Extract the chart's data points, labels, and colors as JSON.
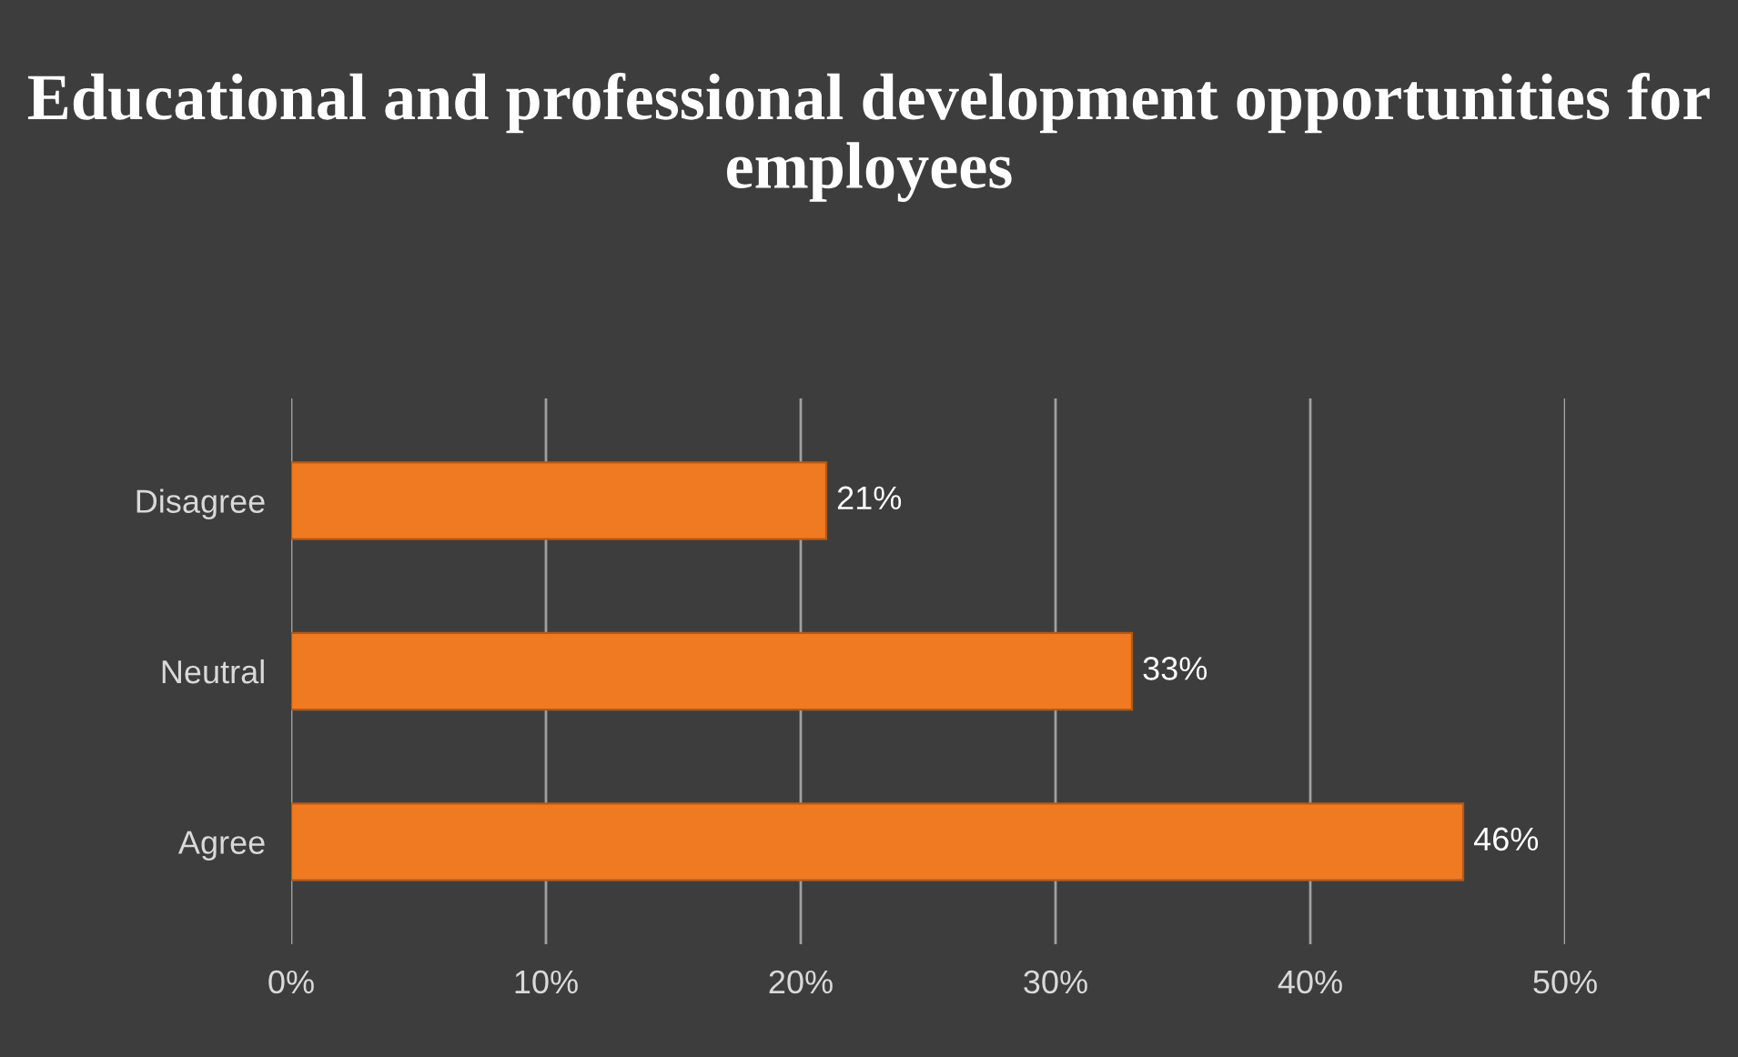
{
  "chart_data": {
    "type": "bar",
    "orientation": "horizontal",
    "title": "Educational and professional development opportunities for employees",
    "categories": [
      "Disagree",
      "Neutral",
      "Agree"
    ],
    "values": [
      21,
      33,
      46
    ],
    "color": "#f07a22",
    "value_labels": [
      "21%",
      "33%",
      "46%"
    ],
    "xlim": [
      0,
      50
    ],
    "xticks": [
      {
        "value": 0,
        "label": "0%"
      },
      {
        "value": 10,
        "label": "10%"
      },
      {
        "value": 20,
        "label": "20%"
      },
      {
        "value": 30,
        "label": "30%"
      },
      {
        "value": 40,
        "label": "40%"
      },
      {
        "value": 50,
        "label": "50%"
      }
    ],
    "grid": "x",
    "legend": false
  }
}
